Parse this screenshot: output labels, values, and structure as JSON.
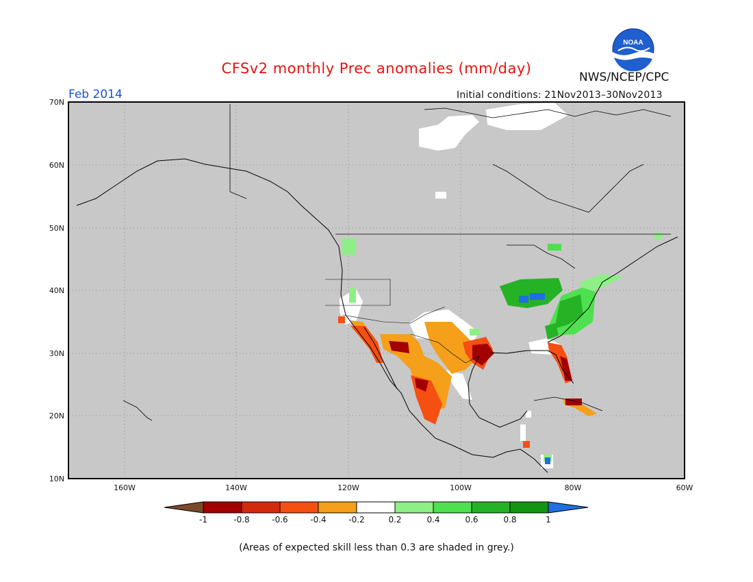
{
  "title": "CFSv2 monthly Prec anomalies (mm/day)",
  "agency": "NWS/NCEP/CPC",
  "month": "Feb 2014",
  "initial_conditions": "Initial conditions: 21Nov2013–30Nov2013",
  "footnote": "(Areas of expected skill less than 0.3 are shaded in grey.)",
  "logo_text": "NOAA",
  "lat_labels": [
    "70N",
    "60N",
    "50N",
    "40N",
    "30N",
    "20N",
    "10N"
  ],
  "lon_labels": [
    "160W",
    "140W",
    "120W",
    "100W",
    "80W",
    "60W"
  ],
  "colorbar": {
    "labels": [
      "-1",
      "-0.8",
      "-0.6",
      "-0.4",
      "-0.2",
      "0.2",
      "0.4",
      "0.6",
      "0.8",
      "1"
    ],
    "colors": [
      "#7a4a2a",
      "#a30000",
      "#d42a0c",
      "#f54f12",
      "#f59f1a",
      "#ffffff",
      "#8fef87",
      "#4fe04f",
      "#25b325",
      "#129612",
      "#1f6fe0"
    ]
  },
  "colors": {
    "background_grey": "#c8c8c8",
    "title_red": "#e8120c",
    "month_blue": "#1a4fd6"
  }
}
